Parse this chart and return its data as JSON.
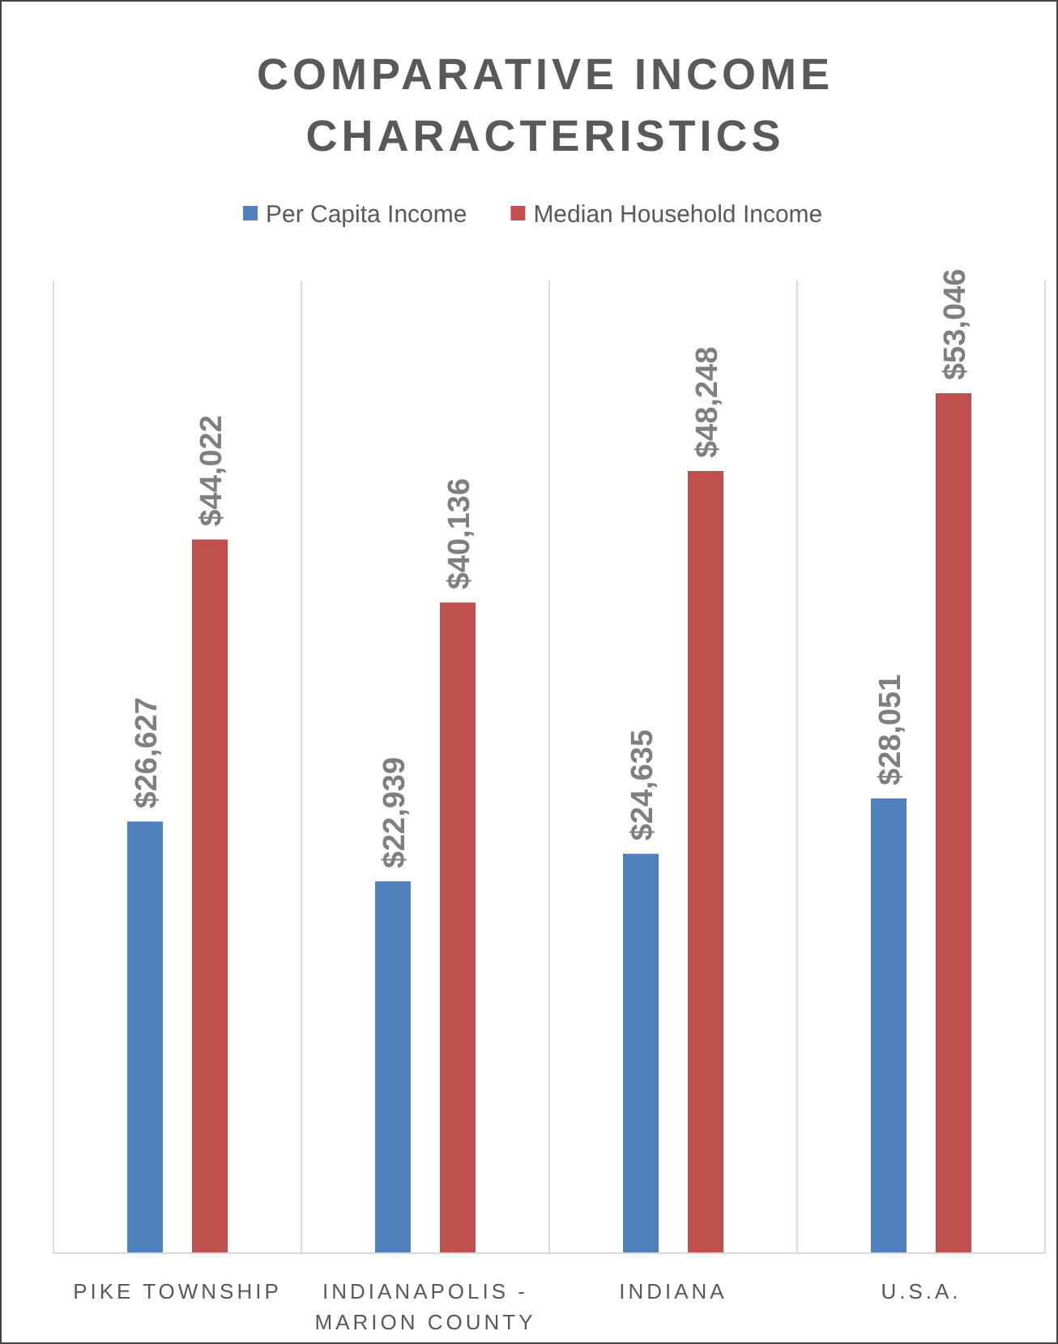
{
  "chart_data": {
    "type": "bar",
    "title": "COMPARATIVE INCOME CHARACTERISTICS",
    "categories": [
      "PIKE TOWNSHIP",
      "INDIANAPOLIS - MARION COUNTY",
      "INDIANA",
      "U.S.A."
    ],
    "series": [
      {
        "name": "Per Capita Income",
        "color": "#4f81bd",
        "values": [
          26627,
          22939,
          24635,
          28051
        ],
        "value_labels": [
          "$26,627",
          "$22,939",
          "$24,635",
          "$28,051"
        ]
      },
      {
        "name": "Median Household Income",
        "color": "#c0504d",
        "values": [
          44022,
          40136,
          48248,
          53046
        ],
        "value_labels": [
          "$44,022",
          "$40,136",
          "$48,248",
          "$53,046"
        ]
      }
    ],
    "ylim": [
      0,
      60000
    ],
    "tick_labels": "x",
    "grid": "x",
    "legend": "top"
  }
}
